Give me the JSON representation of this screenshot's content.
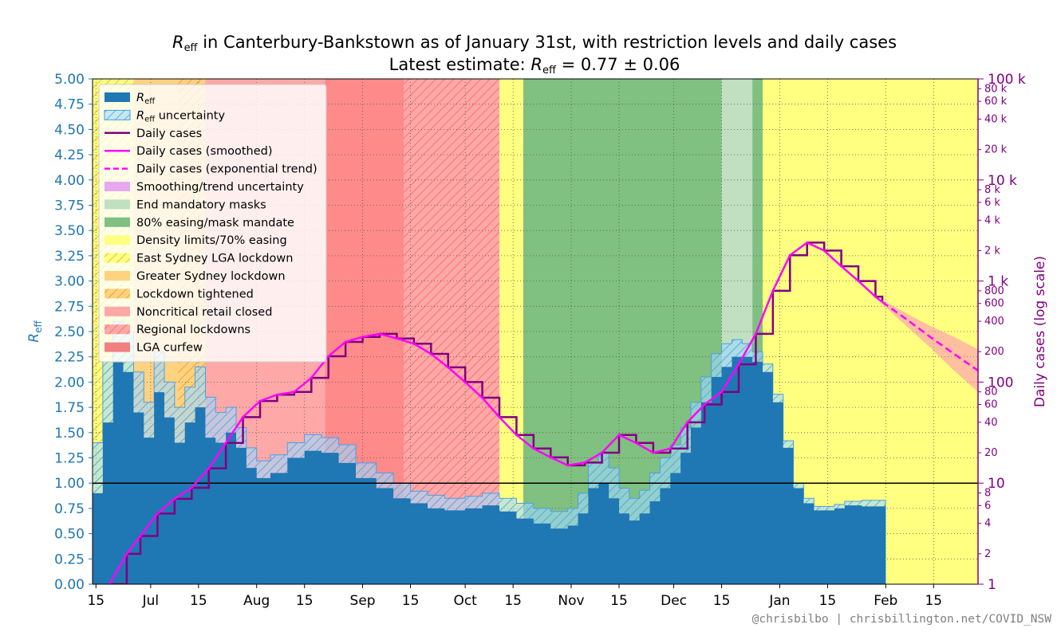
{
  "chart_data": {
    "type": "area",
    "title_main": "R",
    "title_sub": "eff",
    "title_rest": " in Canterbury-Bankstown as of January 31st, with restriction levels and daily cases",
    "subtitle_pre": "Latest estimate: ",
    "subtitle_R": "R",
    "subtitle_sub": "eff",
    "subtitle_rest": " = 0.77 ± 0.06",
    "latest_estimate": 0.77,
    "latest_uncertainty": 0.06,
    "ylabel_left": "R",
    "ylabel_left_sub": "eff",
    "ylabel_right": "Daily cases (log scale)",
    "credit": "@chrisbilbo | chrisbillington.net/COVID_NSW",
    "x_start": "2021-06-14",
    "x_end": "2022-02-28",
    "ylim_left": [
      0,
      5
    ],
    "ylim_right": [
      1,
      100000
    ],
    "right_scale": "log",
    "grid": true,
    "left_ticks": [
      "0.00",
      "0.25",
      "0.50",
      "0.75",
      "1.00",
      "1.25",
      "1.50",
      "1.75",
      "2.00",
      "2.25",
      "2.50",
      "2.75",
      "3.00",
      "3.25",
      "3.50",
      "3.75",
      "4.00",
      "4.25",
      "4.50",
      "4.75",
      "5.00"
    ],
    "right_major_ticks": [
      {
        "value": 1,
        "label": "1"
      },
      {
        "value": 10,
        "label": "10"
      },
      {
        "value": 100,
        "label": "100"
      },
      {
        "value": 1000,
        "label": "1 k"
      },
      {
        "value": 10000,
        "label": "10 k"
      },
      {
        "value": 100000,
        "label": "100 k"
      }
    ],
    "right_minor_ticks": [
      {
        "value": 2,
        "label": "2"
      },
      {
        "value": 4,
        "label": "4"
      },
      {
        "value": 6,
        "label": "6"
      },
      {
        "value": 8,
        "label": "8"
      },
      {
        "value": 20,
        "label": "20"
      },
      {
        "value": 40,
        "label": "40"
      },
      {
        "value": 60,
        "label": "60"
      },
      {
        "value": 80,
        "label": "80"
      },
      {
        "value": 200,
        "label": "200"
      },
      {
        "value": 400,
        "label": "400"
      },
      {
        "value": 600,
        "label": "600"
      },
      {
        "value": 800,
        "label": "800"
      },
      {
        "value": 2000,
        "label": "2 k"
      },
      {
        "value": 4000,
        "label": "4 k"
      },
      {
        "value": 6000,
        "label": "6 k"
      },
      {
        "value": 8000,
        "label": "8 k"
      },
      {
        "value": 20000,
        "label": "20 k"
      },
      {
        "value": 40000,
        "label": "40 k"
      },
      {
        "value": 60000,
        "label": "60 k"
      },
      {
        "value": 80000,
        "label": "80 k"
      }
    ],
    "x_ticks": [
      {
        "date": "2021-06-15",
        "label": "15"
      },
      {
        "date": "2021-07-01",
        "label": "Jul"
      },
      {
        "date": "2021-07-15",
        "label": "15"
      },
      {
        "date": "2021-08-01",
        "label": "Aug"
      },
      {
        "date": "2021-08-15",
        "label": "15"
      },
      {
        "date": "2021-09-01",
        "label": "Sep"
      },
      {
        "date": "2021-09-15",
        "label": "15"
      },
      {
        "date": "2021-10-01",
        "label": "Oct"
      },
      {
        "date": "2021-10-15",
        "label": "15"
      },
      {
        "date": "2021-11-01",
        "label": "Nov"
      },
      {
        "date": "2021-11-15",
        "label": "15"
      },
      {
        "date": "2021-12-01",
        "label": "Dec"
      },
      {
        "date": "2021-12-15",
        "label": "15"
      },
      {
        "date": "2022-01-01",
        "label": "Jan"
      },
      {
        "date": "2022-01-15",
        "label": "15"
      },
      {
        "date": "2022-02-01",
        "label": "Feb"
      },
      {
        "date": "2022-02-15",
        "label": "15"
      }
    ],
    "restriction_periods": [
      {
        "name": "East Sydney LGA lockdown",
        "start": "2021-06-14",
        "end": "2021-06-26",
        "color": "#ffff80",
        "hatch": true
      },
      {
        "name": "Greater Sydney lockdown",
        "start": "2021-06-26",
        "end": "2021-07-09",
        "color": "#ffd280",
        "hatch": false
      },
      {
        "name": "Lockdown tightened",
        "start": "2021-07-09",
        "end": "2021-07-17",
        "color": "#ffb040",
        "hatch": true
      },
      {
        "name": "Noncritical retail closed",
        "start": "2021-07-17",
        "end": "2021-08-21",
        "color": "#ffa8a8",
        "hatch": false
      },
      {
        "name": "LGA curfew",
        "start": "2021-08-21",
        "end": "2021-09-13",
        "color": "#ff8a8a",
        "hatch": false
      },
      {
        "name": "Regional lockdowns",
        "start": "2021-09-13",
        "end": "2021-10-11",
        "color": "#ffa8a8",
        "hatch": true
      },
      {
        "name": "Density limits/70% easing",
        "start": "2021-10-11",
        "end": "2021-10-18",
        "color": "#ffff80",
        "hatch": false
      },
      {
        "name": "80% easing/mask mandate",
        "start": "2021-10-18",
        "end": "2021-12-15",
        "color": "#80c080",
        "hatch": false
      },
      {
        "name": "End mandatory masks",
        "start": "2021-12-15",
        "end": "2021-12-24",
        "color": "#c0e0c0",
        "hatch": false
      },
      {
        "name": "80% easing/mask mandate",
        "start": "2021-12-24",
        "end": "2021-12-27",
        "color": "#80c080",
        "hatch": false
      },
      {
        "name": "Density limits/70% easing",
        "start": "2021-12-27",
        "end": "2022-02-28",
        "color": "#ffff80",
        "hatch": false
      }
    ],
    "reff_series": {
      "name": "R_eff",
      "dates": [
        "2021-06-14",
        "2021-06-17",
        "2021-06-20",
        "2021-06-23",
        "2021-06-26",
        "2021-06-29",
        "2021-07-02",
        "2021-07-05",
        "2021-07-08",
        "2021-07-11",
        "2021-07-14",
        "2021-07-17",
        "2021-07-20",
        "2021-07-23",
        "2021-07-26",
        "2021-07-29",
        "2021-08-01",
        "2021-08-05",
        "2021-08-10",
        "2021-08-15",
        "2021-08-20",
        "2021-08-25",
        "2021-08-30",
        "2021-09-05",
        "2021-09-10",
        "2021-09-15",
        "2021-09-20",
        "2021-09-25",
        "2021-10-01",
        "2021-10-06",
        "2021-10-11",
        "2021-10-16",
        "2021-10-21",
        "2021-10-26",
        "2021-10-31",
        "2021-11-03",
        "2021-11-06",
        "2021-11-09",
        "2021-11-12",
        "2021-11-15",
        "2021-11-18",
        "2021-11-21",
        "2021-11-24",
        "2021-11-27",
        "2021-11-30",
        "2021-12-03",
        "2021-12-06",
        "2021-12-09",
        "2021-12-12",
        "2021-12-15",
        "2021-12-18",
        "2021-12-21",
        "2021-12-24",
        "2021-12-27",
        "2021-12-30",
        "2022-01-02",
        "2022-01-05",
        "2022-01-08",
        "2022-01-11",
        "2022-01-14",
        "2022-01-17",
        "2022-01-20",
        "2022-01-25",
        "2022-01-31"
      ],
      "values": [
        0.9,
        1.6,
        2.2,
        2.1,
        1.7,
        1.45,
        1.9,
        1.65,
        1.4,
        1.6,
        1.75,
        1.45,
        1.4,
        1.5,
        1.35,
        1.15,
        1.05,
        1.1,
        1.25,
        1.32,
        1.3,
        1.2,
        1.05,
        0.95,
        0.85,
        0.8,
        0.75,
        0.73,
        0.75,
        0.78,
        0.72,
        0.65,
        0.6,
        0.55,
        0.58,
        0.7,
        0.95,
        1.0,
        0.85,
        0.7,
        0.63,
        0.7,
        0.82,
        0.95,
        1.1,
        1.3,
        1.55,
        1.8,
        2.05,
        2.15,
        2.25,
        2.25,
        2.2,
        2.1,
        1.8,
        1.35,
        0.95,
        0.8,
        0.73,
        0.73,
        0.75,
        0.78,
        0.77,
        0.77
      ]
    },
    "reff_upper": [
      1.4,
      2.2,
      2.6,
      2.5,
      2.1,
      1.8,
      2.3,
      2.0,
      1.75,
      1.95,
      2.15,
      1.85,
      1.7,
      1.75,
      1.55,
      1.35,
      1.22,
      1.28,
      1.4,
      1.48,
      1.45,
      1.38,
      1.2,
      1.1,
      1.0,
      0.92,
      0.88,
      0.85,
      0.87,
      0.9,
      0.85,
      0.8,
      0.75,
      0.72,
      0.75,
      0.9,
      1.2,
      1.3,
      1.15,
      0.95,
      0.85,
      0.93,
      1.1,
      1.25,
      1.38,
      1.55,
      1.8,
      2.05,
      2.28,
      2.38,
      2.42,
      2.38,
      2.3,
      2.18,
      1.88,
      1.42,
      1.0,
      0.85,
      0.77,
      0.77,
      0.79,
      0.82,
      0.83,
      0.83
    ],
    "cases_series": {
      "name": "Daily cases",
      "dates": [
        "2021-06-19",
        "2021-06-24",
        "2021-06-28",
        "2021-07-03",
        "2021-07-08",
        "2021-07-13",
        "2021-07-18",
        "2021-07-23",
        "2021-07-28",
        "2021-08-02",
        "2021-08-07",
        "2021-08-12",
        "2021-08-17",
        "2021-08-22",
        "2021-08-27",
        "2021-09-01",
        "2021-09-06",
        "2021-09-11",
        "2021-09-16",
        "2021-09-21",
        "2021-09-26",
        "2021-10-01",
        "2021-10-06",
        "2021-10-11",
        "2021-10-16",
        "2021-10-21",
        "2021-10-26",
        "2021-10-31",
        "2021-11-05",
        "2021-11-10",
        "2021-11-15",
        "2021-11-20",
        "2021-11-25",
        "2021-11-30",
        "2021-12-05",
        "2021-12-10",
        "2021-12-15",
        "2021-12-20",
        "2021-12-25",
        "2021-12-30",
        "2022-01-04",
        "2022-01-09",
        "2022-01-14",
        "2022-01-19",
        "2022-01-24",
        "2022-01-29",
        "2022-01-31"
      ],
      "values": [
        1,
        2,
        3,
        5,
        7,
        9,
        14,
        25,
        45,
        65,
        75,
        80,
        110,
        180,
        250,
        280,
        300,
        270,
        240,
        190,
        140,
        100,
        70,
        45,
        30,
        22,
        18,
        15,
        16,
        20,
        30,
        25,
        20,
        22,
        40,
        60,
        80,
        150,
        300,
        800,
        1800,
        2400,
        2000,
        1400,
        1000,
        700,
        620
      ]
    },
    "trend_series": {
      "name": "Daily cases (exponential trend)",
      "dates": [
        "2022-01-31",
        "2022-02-07",
        "2022-02-14",
        "2022-02-21",
        "2022-02-28"
      ],
      "values": [
        620,
        420,
        280,
        190,
        130
      ],
      "upper": [
        650,
        480,
        360,
        280,
        210
      ],
      "lower": [
        590,
        360,
        220,
        130,
        80
      ]
    },
    "legend": [
      {
        "key": "reff",
        "label": "R",
        "sub": "eff",
        "suffix": "",
        "color": "#1f77b4"
      },
      {
        "key": "reff_unc",
        "label": "R",
        "sub": "eff",
        "suffix": " uncertainty",
        "color": "#a0d8ff"
      },
      {
        "key": "cases",
        "label": "Daily cases",
        "color": "#800080"
      },
      {
        "key": "cases_smooth",
        "label": "Daily cases (smoothed)",
        "color": "#ff00ff"
      },
      {
        "key": "cases_trend",
        "label": "Daily cases (exponential trend)",
        "color": "#ff00ff"
      },
      {
        "key": "smooth_unc",
        "label": "Smoothing/trend uncertainty",
        "color": "#e8a8f0"
      },
      {
        "key": "end_masks",
        "label": "End mandatory masks",
        "color": "#c0e0c0"
      },
      {
        "key": "easing80",
        "label": "80% easing/mask mandate",
        "color": "#80c080"
      },
      {
        "key": "density",
        "label": "Density limits/70% easing",
        "color": "#ffff80"
      },
      {
        "key": "east_sydney",
        "label": "East Sydney LGA lockdown",
        "color": "#ffff80"
      },
      {
        "key": "greater_sydney",
        "label": "Greater Sydney lockdown",
        "color": "#ffd280"
      },
      {
        "key": "tightened",
        "label": "Lockdown tightened",
        "color": "#ffb040"
      },
      {
        "key": "retail",
        "label": "Noncritical retail closed",
        "color": "#ffa8a8"
      },
      {
        "key": "regional",
        "label": "Regional lockdowns",
        "color": "#ffa8a8"
      },
      {
        "key": "curfew",
        "label": "LGA curfew",
        "color": "#f08080"
      }
    ]
  }
}
